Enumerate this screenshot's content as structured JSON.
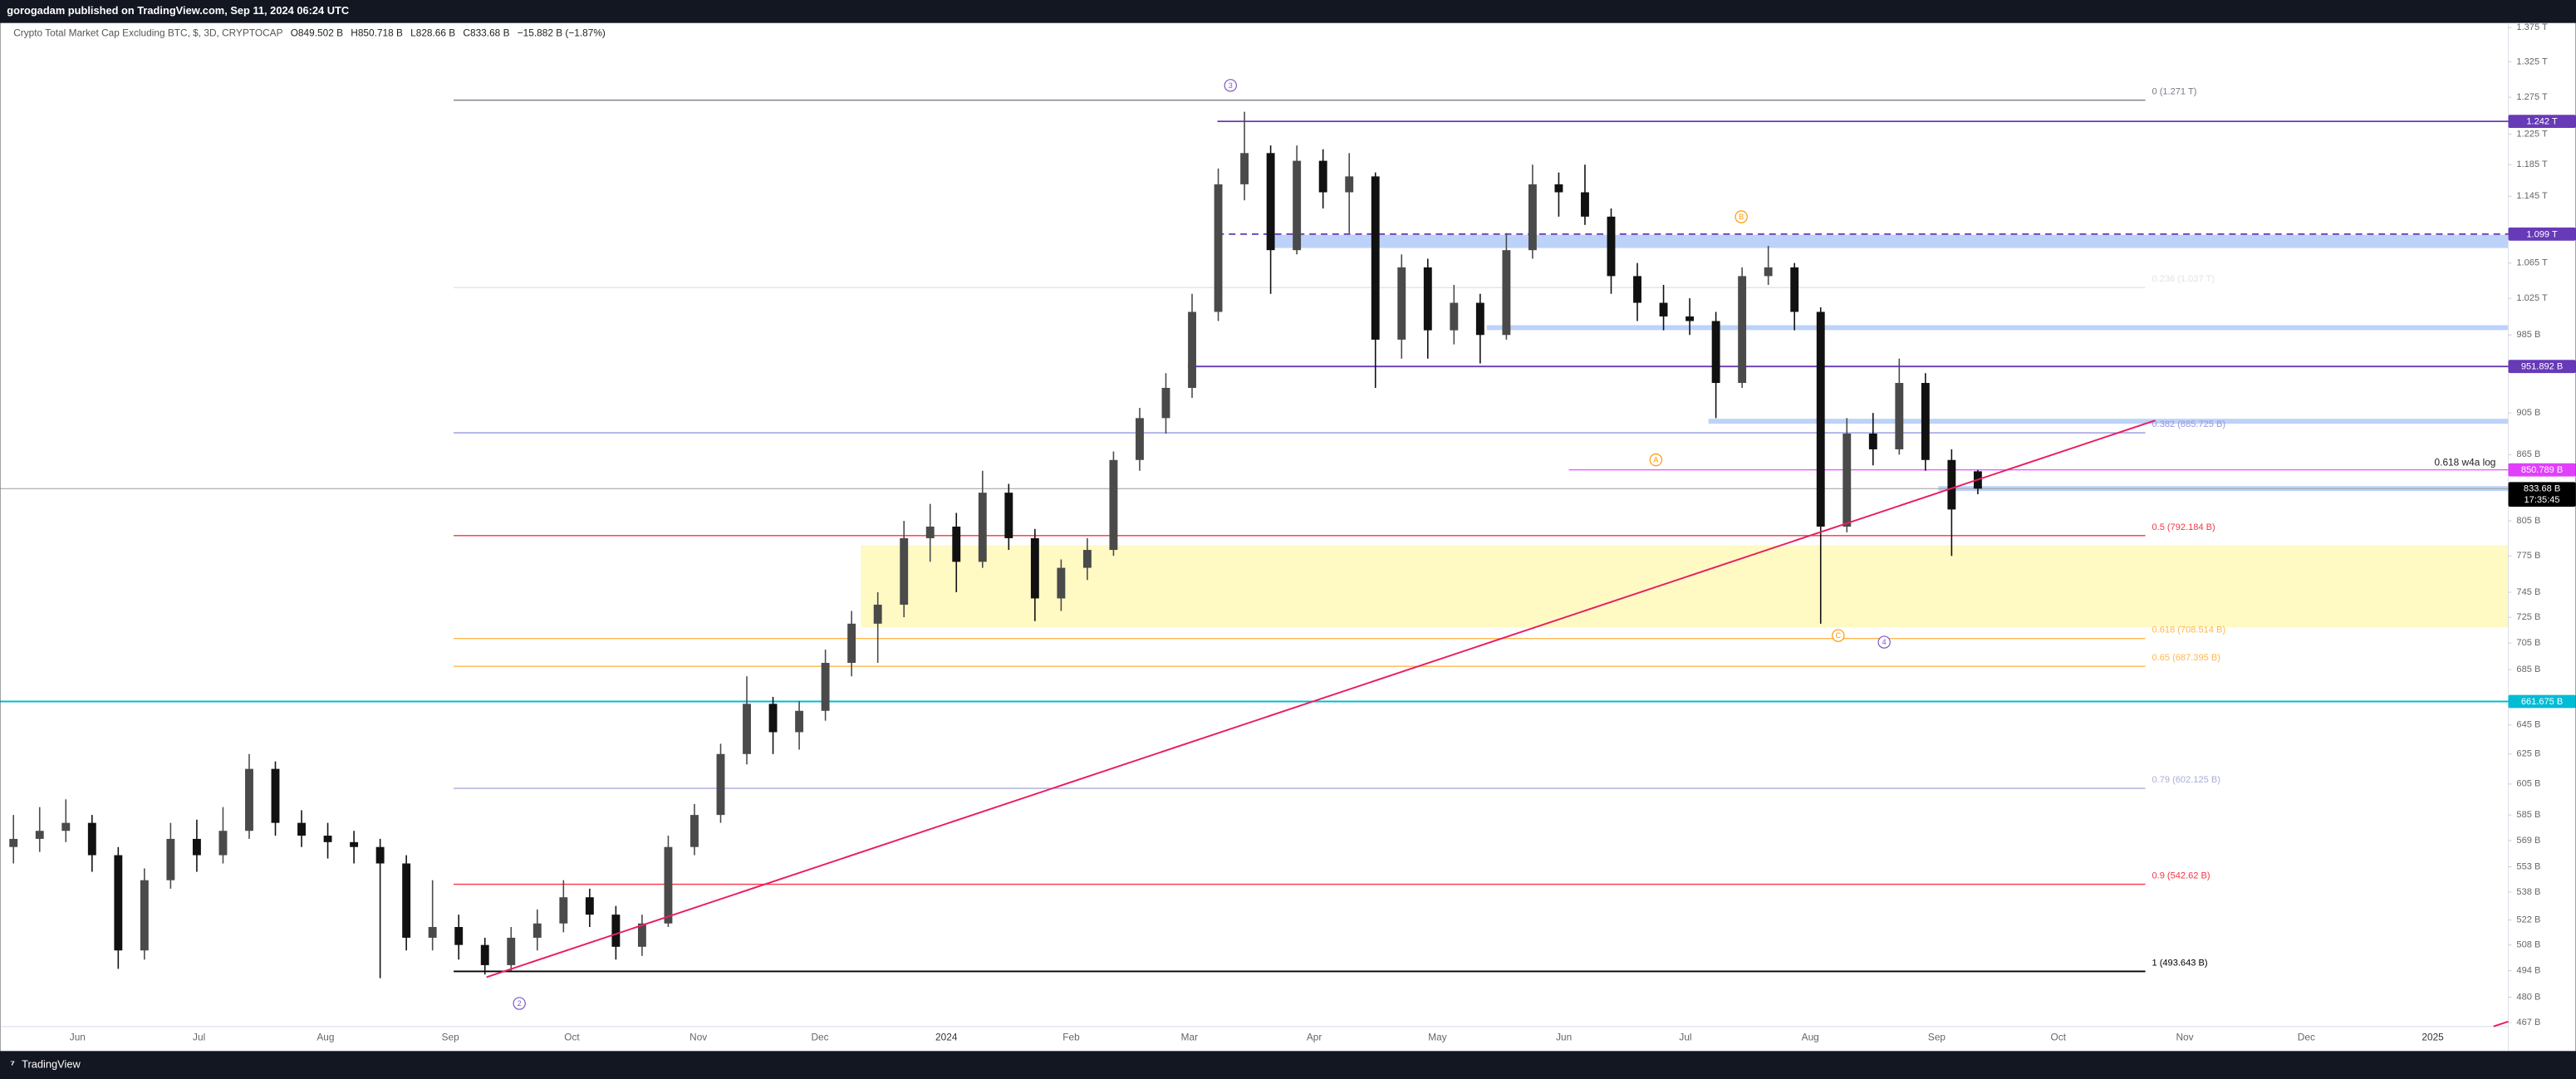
{
  "header": {
    "publisher": "gorogadam published on TradingView.com, Sep 11, 2024 06:24 UTC"
  },
  "legend": {
    "symbol": "Crypto Total Market Cap Excluding BTC, $, 3D, CRYPTOCAP",
    "open": "O849.502 B",
    "high": "H850.718 B",
    "low": "L828.66 B",
    "close": "C833.68 B",
    "change": "−15.882 B (−1.87%)"
  },
  "price_axis": {
    "log": true,
    "range": [
      465,
      1382
    ],
    "ticks": [
      {
        "value": 1375,
        "label": "1.375 T"
      },
      {
        "value": 1325,
        "label": "1.325 T"
      },
      {
        "value": 1275,
        "label": "1.275 T"
      },
      {
        "value": 1225,
        "label": "1.225 T"
      },
      {
        "value": 1185,
        "label": "1.185 T"
      },
      {
        "value": 1145,
        "label": "1.145 T"
      },
      {
        "value": 1065,
        "label": "1.065 T"
      },
      {
        "value": 1025,
        "label": "1.025 T"
      },
      {
        "value": 985,
        "label": "985 B"
      },
      {
        "value": 905,
        "label": "905 B"
      },
      {
        "value": 865,
        "label": "865 B"
      },
      {
        "value": 805,
        "label": "805 B"
      },
      {
        "value": 775,
        "label": "775 B"
      },
      {
        "value": 745,
        "label": "745 B"
      },
      {
        "value": 725,
        "label": "725 B"
      },
      {
        "value": 705,
        "label": "705 B"
      },
      {
        "value": 685,
        "label": "685 B"
      },
      {
        "value": 645,
        "label": "645 B"
      },
      {
        "value": 625,
        "label": "625 B"
      },
      {
        "value": 605,
        "label": "605 B"
      },
      {
        "value": 585,
        "label": "585 B"
      },
      {
        "value": 569,
        "label": "569 B"
      },
      {
        "value": 553,
        "label": "553 B"
      },
      {
        "value": 538,
        "label": "538 B"
      },
      {
        "value": 522,
        "label": "522 B"
      },
      {
        "value": 508,
        "label": "508 B"
      },
      {
        "value": 494,
        "label": "494 B"
      },
      {
        "value": 480,
        "label": "480 B"
      },
      {
        "value": 467,
        "label": "467 B"
      }
    ]
  },
  "time_axis": {
    "labels": [
      "Jun",
      "Jul",
      "Aug",
      "Sep",
      "Oct",
      "Nov",
      "Dec",
      "2024",
      "Feb",
      "Mar",
      "Apr",
      "May",
      "Jun",
      "Jul",
      "Aug",
      "Sep",
      "Oct",
      "Nov",
      "Dec",
      "2025"
    ]
  },
  "candles": {
    "up_color": "#4a4a4a",
    "down_color": "#111111",
    "ohlc": [
      [
        565,
        585,
        555,
        570
      ],
      [
        570,
        590,
        562,
        575
      ],
      [
        575,
        595,
        568,
        580
      ],
      [
        580,
        585,
        550,
        560
      ],
      [
        560,
        565,
        495,
        505
      ],
      [
        505,
        552,
        500,
        545
      ],
      [
        545,
        580,
        540,
        570
      ],
      [
        570,
        582,
        550,
        560
      ],
      [
        560,
        590,
        555,
        575
      ],
      [
        575,
        625,
        570,
        615
      ],
      [
        615,
        620,
        572,
        580
      ],
      [
        580,
        588,
        565,
        572
      ],
      [
        572,
        580,
        558,
        568
      ],
      [
        568,
        575,
        555,
        565
      ],
      [
        565,
        570,
        490,
        555
      ],
      [
        555,
        560,
        505,
        512
      ],
      [
        512,
        545,
        505,
        518
      ],
      [
        518,
        525,
        500,
        508
      ],
      [
        508,
        512,
        492,
        497
      ],
      [
        497,
        518,
        494,
        512
      ],
      [
        512,
        528,
        505,
        520
      ],
      [
        520,
        545,
        515,
        535
      ],
      [
        535,
        540,
        518,
        525
      ],
      [
        525,
        530,
        500,
        507
      ],
      [
        507,
        525,
        502,
        520
      ],
      [
        520,
        572,
        518,
        565
      ],
      [
        565,
        592,
        560,
        585
      ],
      [
        585,
        632,
        580,
        625
      ],
      [
        625,
        680,
        618,
        660
      ],
      [
        660,
        665,
        625,
        640
      ],
      [
        640,
        662,
        628,
        655
      ],
      [
        655,
        700,
        648,
        690
      ],
      [
        690,
        730,
        680,
        720
      ],
      [
        720,
        745,
        690,
        735
      ],
      [
        735,
        805,
        725,
        790
      ],
      [
        790,
        820,
        770,
        800
      ],
      [
        800,
        812,
        745,
        770
      ],
      [
        770,
        850,
        765,
        830
      ],
      [
        830,
        838,
        780,
        790
      ],
      [
        790,
        798,
        722,
        740
      ],
      [
        740,
        772,
        730,
        765
      ],
      [
        765,
        790,
        755,
        780
      ],
      [
        780,
        868,
        775,
        860
      ],
      [
        860,
        910,
        850,
        900
      ],
      [
        900,
        945,
        885,
        930
      ],
      [
        930,
        1030,
        920,
        1010
      ],
      [
        1010,
        1180,
        1000,
        1160
      ],
      [
        1160,
        1255,
        1140,
        1200
      ],
      [
        1200,
        1210,
        1030,
        1080
      ],
      [
        1080,
        1210,
        1075,
        1190
      ],
      [
        1190,
        1205,
        1130,
        1150
      ],
      [
        1150,
        1200,
        1100,
        1170
      ],
      [
        1170,
        1175,
        930,
        980
      ],
      [
        980,
        1075,
        960,
        1060
      ],
      [
        1060,
        1070,
        960,
        990
      ],
      [
        990,
        1040,
        975,
        1020
      ],
      [
        1020,
        1030,
        955,
        985
      ],
      [
        985,
        1100,
        980,
        1080
      ],
      [
        1080,
        1185,
        1070,
        1160
      ],
      [
        1160,
        1175,
        1120,
        1150
      ],
      [
        1150,
        1185,
        1110,
        1120
      ],
      [
        1120,
        1130,
        1030,
        1050
      ],
      [
        1050,
        1065,
        1000,
        1020
      ],
      [
        1020,
        1040,
        990,
        1005
      ],
      [
        1005,
        1025,
        985,
        1000
      ],
      [
        1000,
        1010,
        900,
        935
      ],
      [
        935,
        1060,
        930,
        1050
      ],
      [
        1050,
        1085,
        1040,
        1060
      ],
      [
        1060,
        1065,
        990,
        1010
      ],
      [
        1010,
        1015,
        720,
        800
      ],
      [
        800,
        900,
        795,
        885
      ],
      [
        885,
        905,
        855,
        870
      ],
      [
        870,
        960,
        865,
        935
      ],
      [
        935,
        945,
        850,
        860
      ],
      [
        860,
        870,
        775,
        815
      ],
      [
        849.502,
        850.718,
        828.66,
        833.68
      ]
    ]
  },
  "fib_levels": [
    {
      "label": "0 (1.271 T)",
      "value": 1271,
      "color": "#787b86"
    },
    {
      "label": "0.236 (1.037 T)",
      "value": 1037,
      "color": "#e3e3e3"
    },
    {
      "label": "0.382 (885.725 B)",
      "value": 885.725,
      "color": "#9598e0"
    },
    {
      "label": "0.5 (792.184 B)",
      "value": 792.184,
      "color": "#f23645"
    },
    {
      "label": "0.618 (708.514 B)",
      "value": 708.514,
      "color": "#ffb74d"
    },
    {
      "label": "0.65 (687.395 B)",
      "value": 687.395,
      "color": "#ffb74d"
    },
    {
      "label": "0.79 (602.125 B)",
      "value": 602.125,
      "color": "#a9acdc"
    },
    {
      "label": "0.9 (542.62 B)",
      "value": 542.62,
      "color": "#f23645"
    },
    {
      "label": "1 (493.643 B)",
      "value": 493.643,
      "color": "#000000"
    }
  ],
  "price_tags": [
    {
      "label": "1.242 T",
      "value": 1242,
      "color": "#673ab7"
    },
    {
      "label": "1.099 T",
      "value": 1099,
      "color": "#673ab7"
    },
    {
      "label": "951.892 B",
      "value": 951.892,
      "color": "#673ab7"
    },
    {
      "label": "850.789 B",
      "value": 850.789,
      "color": "#e040fb"
    },
    {
      "label": "661.675 B",
      "value": 661.675,
      "color": "#00bcd4"
    }
  ],
  "last_price": {
    "label": "833.68 B",
    "value": 833.68,
    "countdown": "17:35:45"
  },
  "annotation": "0.618  w4a log",
  "waves": [
    {
      "label": "3",
      "color": "#7e57c2"
    },
    {
      "label": "2",
      "color": "#7e57c2"
    },
    {
      "label": "B",
      "color": "#ff9800"
    },
    {
      "label": "A",
      "color": "#ff9800"
    },
    {
      "label": "C",
      "color": "#ff9800"
    },
    {
      "label": "4",
      "color": "#7e57c2"
    }
  ],
  "footer": {
    "brand": "TradingView"
  }
}
